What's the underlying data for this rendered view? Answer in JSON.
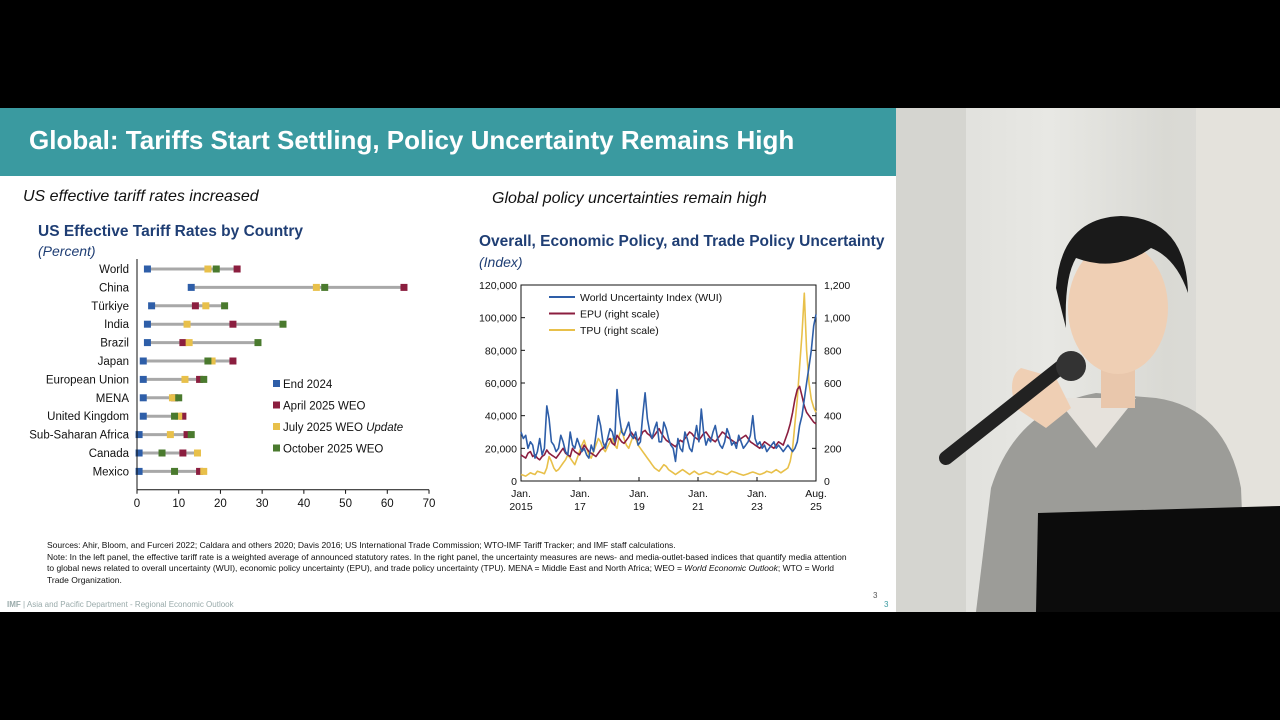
{
  "slide": {
    "title": "Global: Tariffs Start Settling, Policy Uncertainty Remains High",
    "left_subtitle": "US effective tariff rates increased",
    "right_subtitle": "Global policy uncertainties remain high",
    "sources": "Sources: Ahir, Bloom, and Furceri 2022; Caldara and others 2020; Davis 2016; US International Trade Commission; WTO-IMF Tariff Tracker; and IMF staff calculations.",
    "note_1": "Note: In the left panel, the effective tariff rate is a weighted average of announced statutory rates. In the right panel, the uncertainty measures are news- and media-outlet-based indices that quantify media attention to global news related to overall uncertainty (WUI), economic policy uncertainty (EPU), and trade policy uncertainty (TPU). MENA = Middle East and North Africa; WEO = ",
    "note_weo": "World Economic Outlook",
    "note_2": "; WTO = World Trade Organization.",
    "footer_imf": "IMF",
    "footer_text": " | Asia and Pacific Department - Regional Economic Outlook",
    "page_number": "3",
    "page_number_2": "3",
    "colors": {
      "title_bar": "#3a9aa0",
      "chart_title": "#1f3e74"
    }
  },
  "chart_data": [
    {
      "type": "dot-range",
      "title": "US Effective Tariff Rates by Country",
      "unit": "(Percent)",
      "categories": [
        "World",
        "China",
        "Türkiye",
        "India",
        "Brazil",
        "Japan",
        "European Union",
        "MENA",
        "United Kingdom",
        "Sub-Saharan Africa",
        "Canada",
        "Mexico"
      ],
      "series": [
        {
          "name": "End 2024",
          "color": "#2e5ea8",
          "values": [
            2.5,
            13,
            3.5,
            2.5,
            2.5,
            1.5,
            1.5,
            1.5,
            1.5,
            0.5,
            0.5,
            0.5
          ]
        },
        {
          "name": "April 2025 WEO",
          "color": "#8b1e3f",
          "values": [
            24,
            64,
            14,
            23,
            11,
            23,
            15,
            9,
            11,
            12,
            11,
            15
          ]
        },
        {
          "name": "July 2025 WEO Update",
          "color": "#e8c04a",
          "values": [
            17,
            43,
            16.5,
            12,
            12.5,
            18,
            11.5,
            8.5,
            10,
            8,
            14.5,
            16
          ]
        },
        {
          "name": "October 2025 WEO",
          "color": "#4a7a2e",
          "values": [
            19,
            45,
            21,
            35,
            29,
            17,
            16,
            10,
            9,
            13,
            6,
            9
          ]
        }
      ],
      "legend": [
        {
          "label": "End 2024",
          "italic": ""
        },
        {
          "label": "April 2025 WEO",
          "italic": ""
        },
        {
          "label": "July 2025 WEO ",
          "italic": "Update"
        },
        {
          "label": "October 2025 WEO",
          "italic": ""
        }
      ],
      "xticks": [
        "0",
        "10",
        "20",
        "30",
        "40",
        "50",
        "60",
        "70"
      ],
      "xlim": [
        0,
        70
      ]
    },
    {
      "type": "line",
      "title": "Overall, Economic Policy, and Trade Policy Uncertainty",
      "unit": "(Index)",
      "legend": [
        "World Uncertainty Index (WUI)",
        "EPU (right scale)",
        "TPU (right scale)"
      ],
      "left_axis": {
        "min": 0,
        "max": 120000,
        "ticks": [
          "0",
          "20,000",
          "40,000",
          "60,000",
          "80,000",
          "100,000",
          "120,000"
        ]
      },
      "right_axis": {
        "min": 0,
        "max": 1200,
        "ticks": [
          "0",
          "200",
          "400",
          "600",
          "800",
          "1,000",
          "1,200"
        ]
      },
      "x_ticks": [
        [
          "Jan.",
          "2015"
        ],
        [
          "Jan.",
          "17"
        ],
        [
          "Jan.",
          "19"
        ],
        [
          "Jan.",
          "21"
        ],
        [
          "Jan.",
          "23"
        ],
        [
          "Aug.",
          "25"
        ]
      ],
      "x_range_months": [
        0,
        128
      ],
      "series": [
        {
          "name": "World Uncertainty Index (WUI)",
          "axis": "left",
          "color": "#2e5ea8",
          "values": [
            30000,
            26000,
            28000,
            20000,
            24000,
            22000,
            14000,
            18000,
            26000,
            16000,
            20000,
            46000,
            38000,
            24000,
            22000,
            18000,
            20000,
            28000,
            24000,
            18000,
            16000,
            30000,
            22000,
            20000,
            26000,
            22000,
            18000,
            20000,
            16000,
            14000,
            22000,
            18000,
            28000,
            40000,
            34000,
            24000,
            20000,
            26000,
            32000,
            30000,
            24000,
            56000,
            40000,
            30000,
            28000,
            32000,
            36000,
            28000,
            26000,
            30000,
            22000,
            24000,
            40000,
            54000,
            38000,
            30000,
            26000,
            32000,
            36000,
            24000,
            24000,
            36000,
            32000,
            26000,
            22000,
            20000,
            12000,
            26000,
            20000,
            18000,
            30000,
            26000,
            20000,
            18000,
            26000,
            34000,
            24000,
            44000,
            30000,
            22000,
            26000,
            24000,
            30000,
            34000,
            26000,
            22000,
            20000,
            24000,
            32000,
            28000,
            22000,
            24000,
            20000,
            28000,
            24000,
            20000,
            22000,
            24000,
            28000,
            40000,
            26000,
            22000,
            24000,
            20000,
            22000,
            18000,
            20000,
            22000,
            24000,
            20000,
            22000,
            20000,
            18000,
            20000,
            22000,
            20000,
            18000,
            20000,
            24000,
            34000,
            40000,
            50000,
            60000,
            70000,
            80000,
            95000,
            102000
          ]
        },
        {
          "name": "EPU (right scale)",
          "axis": "right",
          "color": "#8b1e3f",
          "values": [
            160,
            150,
            140,
            170,
            180,
            150,
            160,
            140,
            130,
            150,
            160,
            190,
            170,
            160,
            150,
            140,
            160,
            180,
            200,
            170,
            160,
            150,
            200,
            180,
            170,
            160,
            190,
            220,
            200,
            180,
            170,
            160,
            150,
            170,
            190,
            200,
            220,
            250,
            260,
            230,
            220,
            280,
            260,
            240,
            230,
            250,
            270,
            300,
            280,
            260,
            250,
            270,
            300,
            310,
            290,
            280,
            260,
            280,
            300,
            320,
            290,
            270,
            250,
            240,
            230,
            220,
            210,
            230,
            250,
            240,
            260,
            280,
            300,
            290,
            270,
            260,
            250,
            270,
            290,
            300,
            280,
            260,
            250,
            240,
            260,
            280,
            300,
            290,
            270,
            260,
            250,
            240,
            230,
            250,
            260,
            270,
            280,
            260,
            240,
            230,
            220,
            210,
            200,
            220,
            240,
            230,
            220,
            210,
            200,
            220,
            240,
            230,
            220,
            260,
            300,
            350,
            420,
            500,
            560,
            580,
            520,
            460,
            420,
            400,
            380,
            360,
            350
          ]
        },
        {
          "name": "TPU (right scale)",
          "axis": "right",
          "color": "#e8c04a",
          "values": [
            40,
            35,
            30,
            40,
            50,
            45,
            40,
            60,
            55,
            50,
            45,
            80,
            150,
            120,
            80,
            60,
            70,
            90,
            110,
            130,
            160,
            140,
            120,
            100,
            140,
            180,
            220,
            250,
            200,
            160,
            140,
            180,
            220,
            260,
            240,
            200,
            180,
            210,
            240,
            260,
            220,
            200,
            280,
            320,
            260,
            220,
            200,
            240,
            280,
            260,
            220,
            200,
            180,
            160,
            140,
            120,
            100,
            80,
            70,
            60,
            80,
            100,
            90,
            70,
            60,
            50,
            40,
            50,
            60,
            70,
            60,
            50,
            40,
            50,
            60,
            50,
            40,
            45,
            50,
            55,
            50,
            45,
            40,
            50,
            60,
            55,
            50,
            45,
            40,
            50,
            60,
            55,
            50,
            45,
            40,
            35,
            40,
            45,
            50,
            55,
            50,
            45,
            40,
            45,
            50,
            60,
            55,
            50,
            60,
            70,
            60,
            50,
            60,
            70,
            80,
            120,
            200,
            350,
            500,
            700,
            900,
            1150,
            800,
            600,
            500,
            450,
            420
          ]
        }
      ]
    }
  ]
}
